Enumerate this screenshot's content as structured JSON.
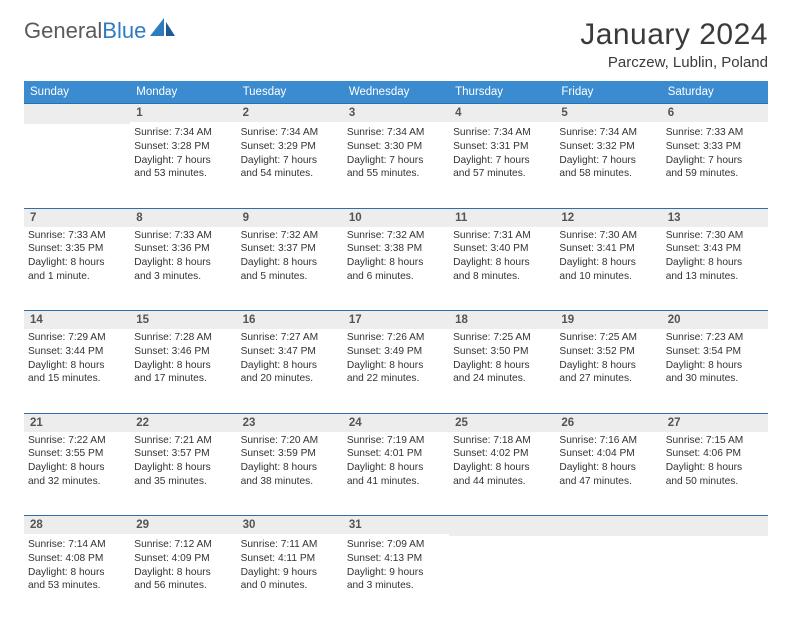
{
  "logo": {
    "text1": "General",
    "text2": "Blue"
  },
  "title": "January 2024",
  "location": "Parczew, Lublin, Poland",
  "colors": {
    "header_bg": "#3b8bd0",
    "header_text": "#ffffff",
    "rule": "#2e6fa8",
    "daynum_bg": "#ededed",
    "daynum_text": "#545454",
    "body_text": "#333333",
    "logo_gray": "#5a5a5a",
    "logo_blue": "#2e7cc0"
  },
  "weekdays": [
    "Sunday",
    "Monday",
    "Tuesday",
    "Wednesday",
    "Thursday",
    "Friday",
    "Saturday"
  ],
  "weeks": [
    [
      null,
      {
        "n": "1",
        "sr": "Sunrise: 7:34 AM",
        "ss": "Sunset: 3:28 PM",
        "d1": "Daylight: 7 hours",
        "d2": "and 53 minutes."
      },
      {
        "n": "2",
        "sr": "Sunrise: 7:34 AM",
        "ss": "Sunset: 3:29 PM",
        "d1": "Daylight: 7 hours",
        "d2": "and 54 minutes."
      },
      {
        "n": "3",
        "sr": "Sunrise: 7:34 AM",
        "ss": "Sunset: 3:30 PM",
        "d1": "Daylight: 7 hours",
        "d2": "and 55 minutes."
      },
      {
        "n": "4",
        "sr": "Sunrise: 7:34 AM",
        "ss": "Sunset: 3:31 PM",
        "d1": "Daylight: 7 hours",
        "d2": "and 57 minutes."
      },
      {
        "n": "5",
        "sr": "Sunrise: 7:34 AM",
        "ss": "Sunset: 3:32 PM",
        "d1": "Daylight: 7 hours",
        "d2": "and 58 minutes."
      },
      {
        "n": "6",
        "sr": "Sunrise: 7:33 AM",
        "ss": "Sunset: 3:33 PM",
        "d1": "Daylight: 7 hours",
        "d2": "and 59 minutes."
      }
    ],
    [
      {
        "n": "7",
        "sr": "Sunrise: 7:33 AM",
        "ss": "Sunset: 3:35 PM",
        "d1": "Daylight: 8 hours",
        "d2": "and 1 minute."
      },
      {
        "n": "8",
        "sr": "Sunrise: 7:33 AM",
        "ss": "Sunset: 3:36 PM",
        "d1": "Daylight: 8 hours",
        "d2": "and 3 minutes."
      },
      {
        "n": "9",
        "sr": "Sunrise: 7:32 AM",
        "ss": "Sunset: 3:37 PM",
        "d1": "Daylight: 8 hours",
        "d2": "and 5 minutes."
      },
      {
        "n": "10",
        "sr": "Sunrise: 7:32 AM",
        "ss": "Sunset: 3:38 PM",
        "d1": "Daylight: 8 hours",
        "d2": "and 6 minutes."
      },
      {
        "n": "11",
        "sr": "Sunrise: 7:31 AM",
        "ss": "Sunset: 3:40 PM",
        "d1": "Daylight: 8 hours",
        "d2": "and 8 minutes."
      },
      {
        "n": "12",
        "sr": "Sunrise: 7:30 AM",
        "ss": "Sunset: 3:41 PM",
        "d1": "Daylight: 8 hours",
        "d2": "and 10 minutes."
      },
      {
        "n": "13",
        "sr": "Sunrise: 7:30 AM",
        "ss": "Sunset: 3:43 PM",
        "d1": "Daylight: 8 hours",
        "d2": "and 13 minutes."
      }
    ],
    [
      {
        "n": "14",
        "sr": "Sunrise: 7:29 AM",
        "ss": "Sunset: 3:44 PM",
        "d1": "Daylight: 8 hours",
        "d2": "and 15 minutes."
      },
      {
        "n": "15",
        "sr": "Sunrise: 7:28 AM",
        "ss": "Sunset: 3:46 PM",
        "d1": "Daylight: 8 hours",
        "d2": "and 17 minutes."
      },
      {
        "n": "16",
        "sr": "Sunrise: 7:27 AM",
        "ss": "Sunset: 3:47 PM",
        "d1": "Daylight: 8 hours",
        "d2": "and 20 minutes."
      },
      {
        "n": "17",
        "sr": "Sunrise: 7:26 AM",
        "ss": "Sunset: 3:49 PM",
        "d1": "Daylight: 8 hours",
        "d2": "and 22 minutes."
      },
      {
        "n": "18",
        "sr": "Sunrise: 7:25 AM",
        "ss": "Sunset: 3:50 PM",
        "d1": "Daylight: 8 hours",
        "d2": "and 24 minutes."
      },
      {
        "n": "19",
        "sr": "Sunrise: 7:25 AM",
        "ss": "Sunset: 3:52 PM",
        "d1": "Daylight: 8 hours",
        "d2": "and 27 minutes."
      },
      {
        "n": "20",
        "sr": "Sunrise: 7:23 AM",
        "ss": "Sunset: 3:54 PM",
        "d1": "Daylight: 8 hours",
        "d2": "and 30 minutes."
      }
    ],
    [
      {
        "n": "21",
        "sr": "Sunrise: 7:22 AM",
        "ss": "Sunset: 3:55 PM",
        "d1": "Daylight: 8 hours",
        "d2": "and 32 minutes."
      },
      {
        "n": "22",
        "sr": "Sunrise: 7:21 AM",
        "ss": "Sunset: 3:57 PM",
        "d1": "Daylight: 8 hours",
        "d2": "and 35 minutes."
      },
      {
        "n": "23",
        "sr": "Sunrise: 7:20 AM",
        "ss": "Sunset: 3:59 PM",
        "d1": "Daylight: 8 hours",
        "d2": "and 38 minutes."
      },
      {
        "n": "24",
        "sr": "Sunrise: 7:19 AM",
        "ss": "Sunset: 4:01 PM",
        "d1": "Daylight: 8 hours",
        "d2": "and 41 minutes."
      },
      {
        "n": "25",
        "sr": "Sunrise: 7:18 AM",
        "ss": "Sunset: 4:02 PM",
        "d1": "Daylight: 8 hours",
        "d2": "and 44 minutes."
      },
      {
        "n": "26",
        "sr": "Sunrise: 7:16 AM",
        "ss": "Sunset: 4:04 PM",
        "d1": "Daylight: 8 hours",
        "d2": "and 47 minutes."
      },
      {
        "n": "27",
        "sr": "Sunrise: 7:15 AM",
        "ss": "Sunset: 4:06 PM",
        "d1": "Daylight: 8 hours",
        "d2": "and 50 minutes."
      }
    ],
    [
      {
        "n": "28",
        "sr": "Sunrise: 7:14 AM",
        "ss": "Sunset: 4:08 PM",
        "d1": "Daylight: 8 hours",
        "d2": "and 53 minutes."
      },
      {
        "n": "29",
        "sr": "Sunrise: 7:12 AM",
        "ss": "Sunset: 4:09 PM",
        "d1": "Daylight: 8 hours",
        "d2": "and 56 minutes."
      },
      {
        "n": "30",
        "sr": "Sunrise: 7:11 AM",
        "ss": "Sunset: 4:11 PM",
        "d1": "Daylight: 9 hours",
        "d2": "and 0 minutes."
      },
      {
        "n": "31",
        "sr": "Sunrise: 7:09 AM",
        "ss": "Sunset: 4:13 PM",
        "d1": "Daylight: 9 hours",
        "d2": "and 3 minutes."
      },
      null,
      null,
      null
    ]
  ]
}
